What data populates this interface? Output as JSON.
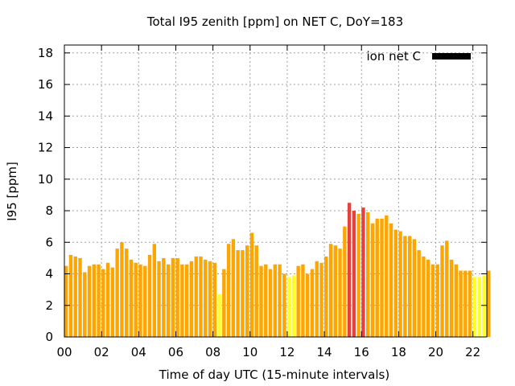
{
  "chart_data": {
    "type": "bar",
    "title": "Total I95 zenith [ppm] on NET C, DoY=183",
    "xlabel": "Time of day UTC (15-minute intervals)",
    "ylabel": "I95 [ppm]",
    "ylim": [
      0,
      18.5
    ],
    "xlim": [
      0,
      22.75
    ],
    "yticks": [
      0,
      2,
      4,
      6,
      8,
      10,
      12,
      14,
      16,
      18
    ],
    "xticks": [
      0,
      2,
      4,
      6,
      8,
      10,
      12,
      14,
      16,
      18,
      20,
      22
    ],
    "xtick_labels": [
      "00",
      "02",
      "04",
      "06",
      "08",
      "10",
      "12",
      "14",
      "16",
      "18",
      "20",
      "22"
    ],
    "grid": true,
    "legend": {
      "position": "top-right",
      "entries": [
        {
          "label": "ion net C",
          "color": "#000000"
        }
      ]
    },
    "interval_hours": 0.25,
    "bar_width_hours": 0.19,
    "colors": {
      "normal": "#ffa500",
      "low": "#ffff24",
      "high": "#e8413c"
    },
    "values": [
      4.5,
      5.2,
      5.1,
      5.0,
      4.1,
      4.5,
      4.6,
      4.6,
      4.3,
      4.7,
      4.4,
      5.6,
      6.0,
      5.6,
      4.9,
      4.7,
      4.6,
      4.5,
      5.2,
      5.9,
      4.8,
      5.0,
      4.6,
      5.0,
      5.0,
      4.6,
      4.6,
      4.8,
      5.1,
      5.1,
      4.9,
      4.8,
      4.7,
      2.7,
      4.3,
      5.9,
      6.2,
      5.5,
      5.5,
      5.8,
      6.6,
      5.8,
      4.5,
      4.6,
      4.3,
      4.6,
      4.6,
      4.0,
      3.8,
      3.9,
      4.5,
      4.6,
      4.0,
      4.3,
      4.8,
      4.7,
      5.1,
      5.9,
      5.8,
      5.6,
      7.0,
      8.5,
      8.0,
      7.8,
      8.2,
      7.9,
      7.2,
      7.5,
      7.5,
      7.7,
      7.2,
      6.8,
      6.7,
      6.4,
      6.4,
      6.2,
      5.5,
      5.1,
      4.9,
      4.6,
      4.6,
      5.8,
      6.1,
      4.9,
      4.6,
      4.2,
      4.2,
      4.2,
      3.8,
      3.8,
      3.9,
      4.2
    ],
    "levels": [
      "normal",
      "normal",
      "normal",
      "normal",
      "normal",
      "normal",
      "normal",
      "normal",
      "normal",
      "normal",
      "normal",
      "normal",
      "normal",
      "normal",
      "normal",
      "normal",
      "normal",
      "normal",
      "normal",
      "normal",
      "normal",
      "normal",
      "normal",
      "normal",
      "normal",
      "normal",
      "normal",
      "normal",
      "normal",
      "normal",
      "normal",
      "normal",
      "normal",
      "low",
      "normal",
      "normal",
      "normal",
      "normal",
      "normal",
      "normal",
      "normal",
      "normal",
      "normal",
      "normal",
      "normal",
      "normal",
      "normal",
      "normal",
      "low",
      "low",
      "normal",
      "normal",
      "normal",
      "normal",
      "normal",
      "normal",
      "normal",
      "normal",
      "normal",
      "normal",
      "normal",
      "high",
      "high",
      "normal",
      "high",
      "normal",
      "normal",
      "normal",
      "normal",
      "normal",
      "normal",
      "normal",
      "normal",
      "normal",
      "normal",
      "normal",
      "normal",
      "normal",
      "normal",
      "normal",
      "normal",
      "normal",
      "normal",
      "normal",
      "normal",
      "normal",
      "normal",
      "normal",
      "low",
      "low",
      "low",
      "normal"
    ]
  }
}
